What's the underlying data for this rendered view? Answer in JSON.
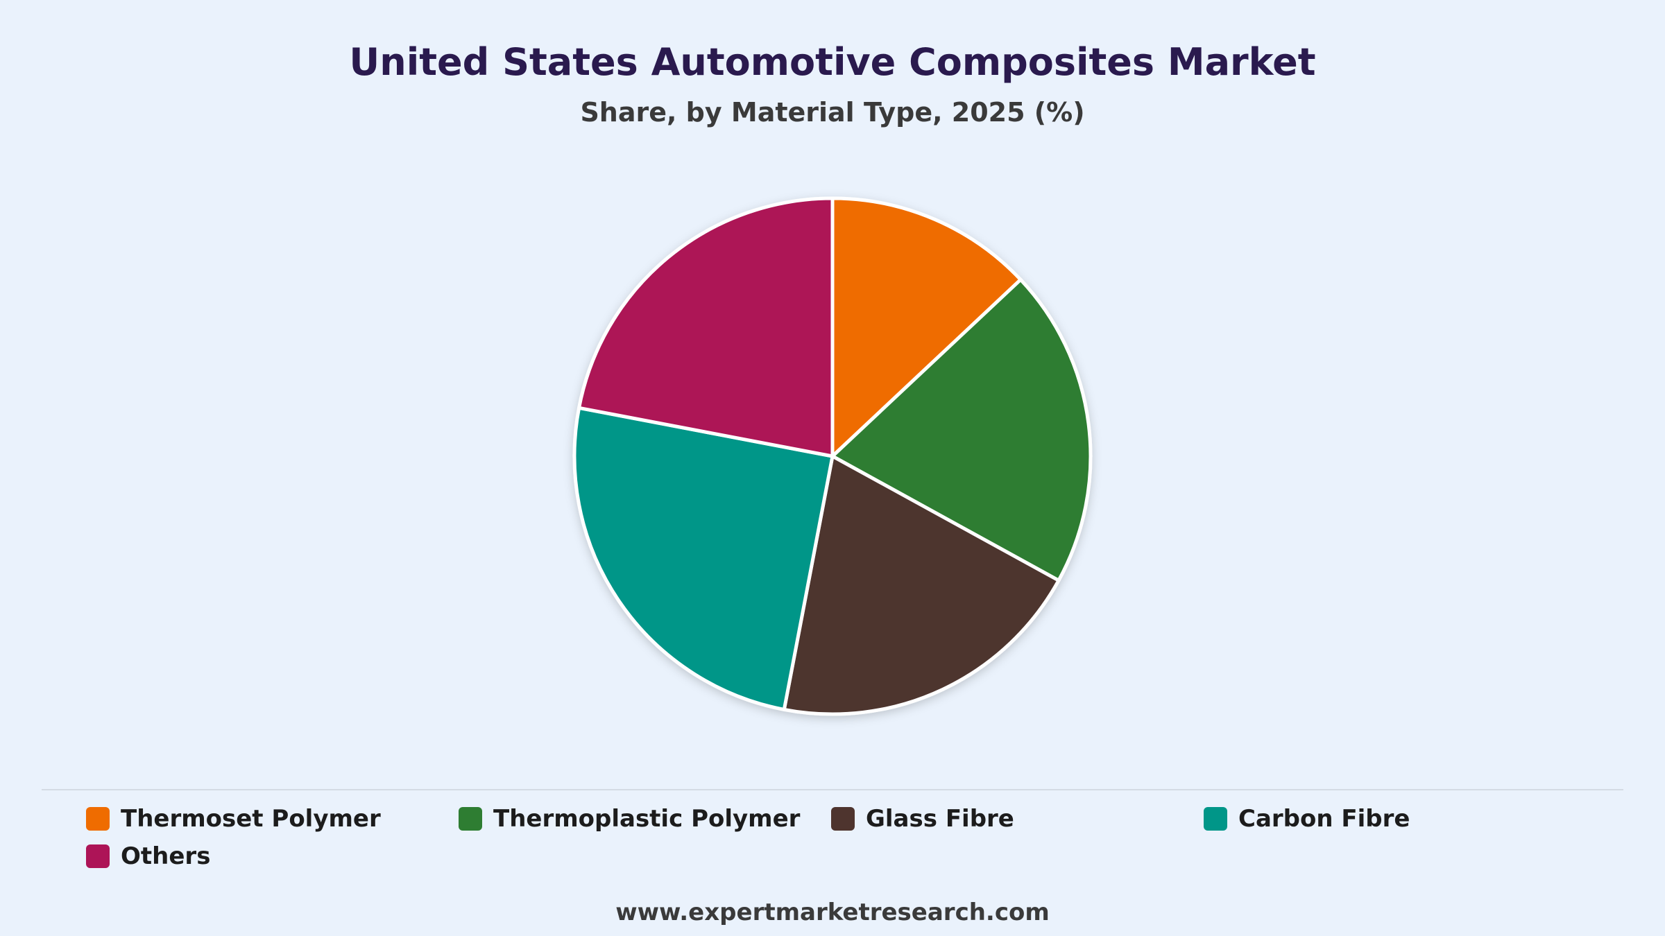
{
  "header": {
    "title": "United States Automotive Composites Market",
    "subtitle": "Share, by Material Type, 2025 (%)"
  },
  "chart_data": {
    "type": "pie",
    "title": "United States Automotive Composites Market",
    "subtitle": "Share, by Material Type, 2025 (%)",
    "categories": [
      "Thermoset Polymer",
      "Thermoplastic Polymer",
      "Glass Fibre",
      "Carbon Fibre",
      "Others"
    ],
    "values": [
      13,
      20,
      20,
      25,
      22
    ],
    "colors": [
      "#ef6c00",
      "#2e7d32",
      "#4e342e",
      "#009688",
      "#ad1457"
    ],
    "start_angle_deg": 0,
    "direction": "clockwise",
    "legend_position": "bottom"
  },
  "legend": {
    "items": [
      {
        "label": "Thermoset Polymer",
        "color": "#ef6c00"
      },
      {
        "label": "Thermoplastic Polymer",
        "color": "#2e7d32"
      },
      {
        "label": "Glass Fibre",
        "color": "#4e342e"
      },
      {
        "label": "Carbon Fibre",
        "color": "#009688"
      },
      {
        "label": "Others",
        "color": "#ad1457"
      }
    ]
  },
  "footer": {
    "source": "www.expertmarketresearch.com"
  }
}
